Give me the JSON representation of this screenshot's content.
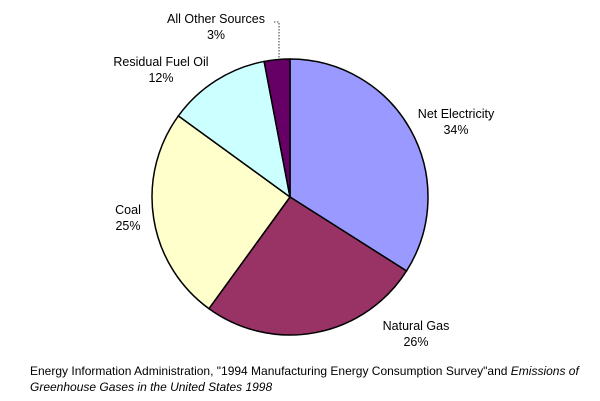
{
  "chart_data": {
    "type": "pie",
    "slices": [
      {
        "label": "Net Electricity",
        "percent_text": "34%",
        "value": 34,
        "color": "#9999ff"
      },
      {
        "label": "Natural Gas",
        "percent_text": "26%",
        "value": 26,
        "color": "#993366"
      },
      {
        "label": "Coal",
        "percent_text": "25%",
        "value": 25,
        "color": "#ffffcc"
      },
      {
        "label": "Residual Fuel Oil",
        "percent_text": "12%",
        "value": 12,
        "color": "#ccffff"
      },
      {
        "label": "All Other Sources",
        "percent_text": "3%",
        "value": 3,
        "color": "#660066"
      }
    ],
    "start": "12 o'clock",
    "direction": "clockwise"
  },
  "source": {
    "prefix": "Energy Information Administration, \"1994 Manufacturing Energy Consumption Survey\"and ",
    "italic": "Emissions of Greenhouse Gases in the United States 1998"
  }
}
